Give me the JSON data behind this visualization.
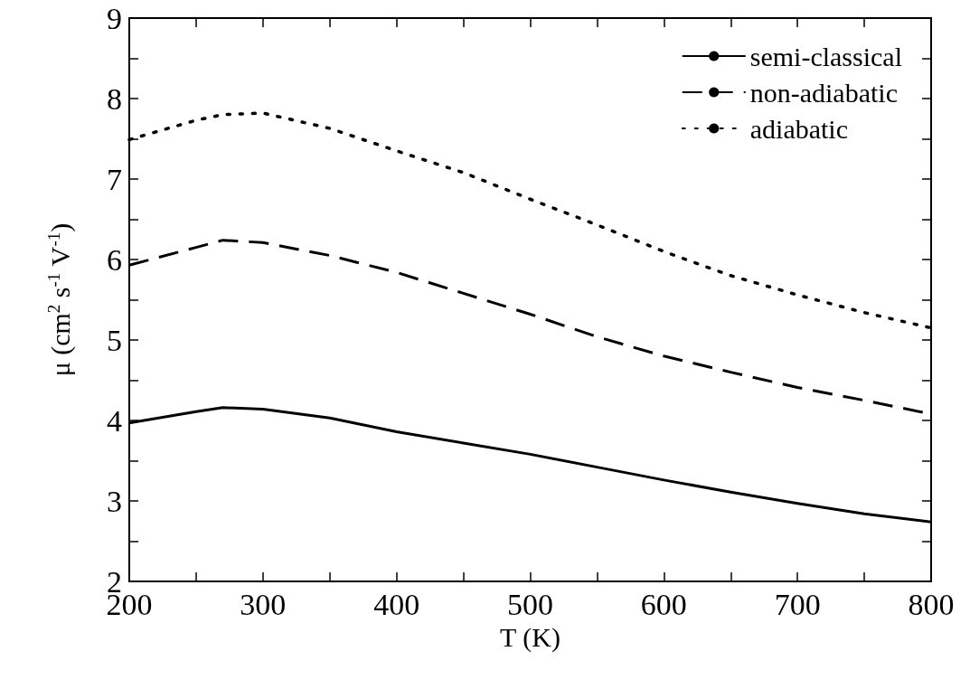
{
  "chart_data": {
    "type": "line",
    "xlabel": "T (K)",
    "ylabel": "μ (cm$^{2}$ s$^{-1}$ V$^{-1}$)",
    "x": [
      200,
      250,
      270,
      300,
      350,
      400,
      450,
      500,
      550,
      600,
      650,
      700,
      750,
      800
    ],
    "series": [
      {
        "name": "semi-classical",
        "color": "#000000",
        "line_style": "solid",
        "values": [
          3.97,
          4.11,
          4.16,
          4.14,
          4.03,
          3.86,
          3.72,
          3.58,
          3.42,
          3.26,
          3.11,
          2.97,
          2.84,
          2.74
        ]
      },
      {
        "name": "non-adiabatic",
        "color": "#000000",
        "line_style": "dashed",
        "values": [
          5.93,
          6.15,
          6.24,
          6.21,
          6.05,
          5.84,
          5.58,
          5.32,
          5.04,
          4.8,
          4.6,
          4.41,
          4.25,
          4.08
        ]
      },
      {
        "name": "adiabatic",
        "color": "#000000",
        "line_style": "dotted",
        "values": [
          7.49,
          7.73,
          7.8,
          7.82,
          7.63,
          7.35,
          7.08,
          6.75,
          6.43,
          6.1,
          5.8,
          5.56,
          5.34,
          5.15
        ]
      }
    ],
    "xlim": [
      200,
      800
    ],
    "ylim": [
      2,
      9
    ],
    "xticks": [
      200,
      {
        "value": 250,
        "label": null
      },
      300,
      {
        "value": 350,
        "label": null
      },
      400,
      {
        "value": 450,
        "label": null
      },
      500,
      {
        "value": 550,
        "label": null
      },
      600,
      {
        "value": 650,
        "label": null
      },
      700,
      {
        "value": 750,
        "label": null
      },
      800
    ],
    "yticks": [
      2,
      {
        "value": 2.5,
        "label": null
      },
      3,
      {
        "value": 3.5,
        "label": null
      },
      4,
      {
        "value": 4.5,
        "label": null
      },
      5,
      {
        "value": 5.5,
        "label": null
      },
      6,
      {
        "value": 6.5,
        "label": null
      },
      7,
      {
        "value": 7.5,
        "label": null
      },
      8,
      {
        "value": 8.5,
        "label": null
      },
      9
    ],
    "grid": false,
    "legend": "top right",
    "marker": "none"
  }
}
